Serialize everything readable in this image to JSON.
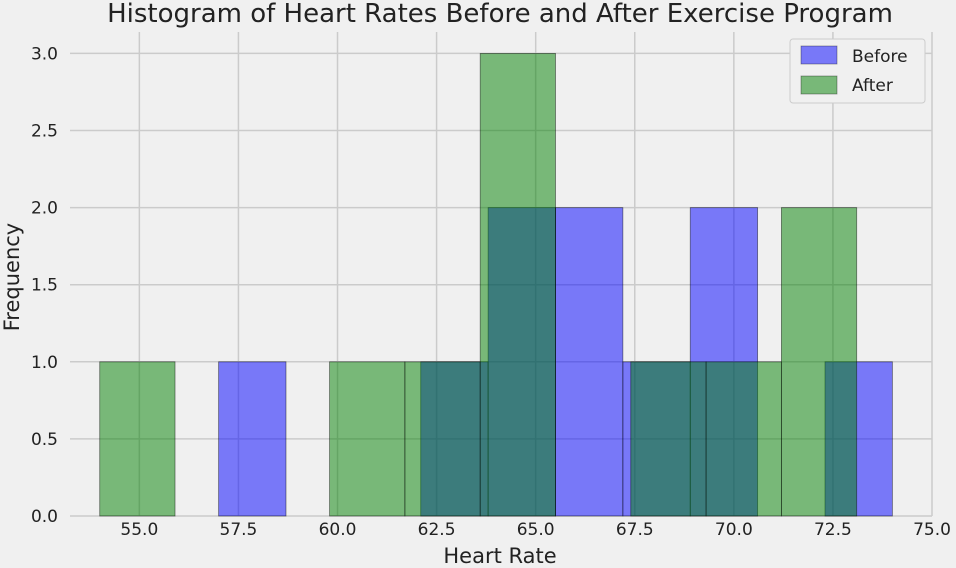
{
  "chart_data": {
    "type": "bar",
    "title": "Histogram of Heart Rates Before and After Exercise Program",
    "xlabel": "Heart Rate",
    "ylabel": "Frequency",
    "xlim": [
      53.25,
      75.0
    ],
    "ylim": [
      0,
      3.1
    ],
    "x_ticks": [
      "55.0",
      "57.5",
      "60.0",
      "62.5",
      "65.0",
      "67.5",
      "70.0",
      "72.5",
      "75.0"
    ],
    "y_ticks": [
      "0.0",
      "0.5",
      "1.0",
      "1.5",
      "2.0",
      "2.5",
      "3.0"
    ],
    "grid": true,
    "legend_position": "top-right",
    "series": [
      {
        "name": "Before",
        "color": "#0000ff",
        "bins": [
          {
            "x0": 57.0,
            "x1": 58.7,
            "count": 1
          },
          {
            "x0": 62.1,
            "x1": 63.8,
            "count": 1
          },
          {
            "x0": 63.8,
            "x1": 65.5,
            "count": 2
          },
          {
            "x0": 65.5,
            "x1": 67.2,
            "count": 2
          },
          {
            "x0": 67.2,
            "x1": 68.9,
            "count": 1
          },
          {
            "x0": 68.9,
            "x1": 70.6,
            "count": 2
          },
          {
            "x0": 72.3,
            "x1": 74.0,
            "count": 1
          }
        ]
      },
      {
        "name": "After",
        "color": "#008000",
        "bins": [
          {
            "x0": 54.0,
            "x1": 55.9,
            "count": 1
          },
          {
            "x0": 59.8,
            "x1": 61.7,
            "count": 1
          },
          {
            "x0": 61.7,
            "x1": 63.6,
            "count": 1
          },
          {
            "x0": 63.6,
            "x1": 65.5,
            "count": 3
          },
          {
            "x0": 67.4,
            "x1": 69.3,
            "count": 1
          },
          {
            "x0": 69.3,
            "x1": 71.2,
            "count": 1
          },
          {
            "x0": 71.2,
            "x1": 73.1,
            "count": 2
          }
        ]
      }
    ]
  }
}
